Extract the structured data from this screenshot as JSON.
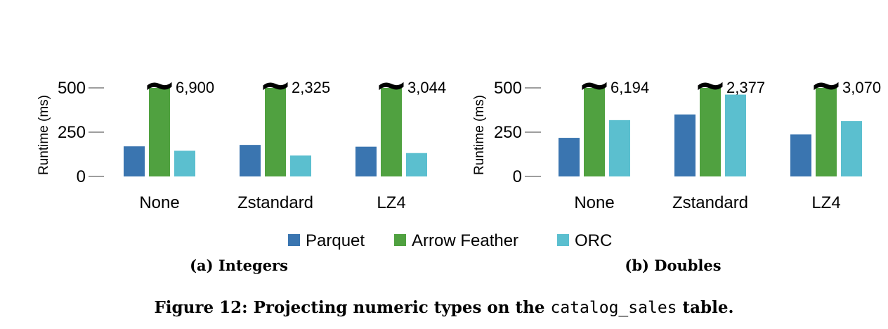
{
  "figure": {
    "caption_prefix": "Figure 12: Projecting numeric types on the",
    "caption_code": "catalog_sales",
    "caption_suffix": "table."
  },
  "legend": {
    "position": "bottom-center",
    "items": [
      {
        "label": "Parquet",
        "color": "#3a75b0"
      },
      {
        "label": "Arrow Feather",
        "color": "#50a140"
      },
      {
        "label": "ORC",
        "color": "#5bbfcf"
      }
    ]
  },
  "chart_data": [
    {
      "type": "bar",
      "subtitle": "(a) Integers",
      "ylabel": "Runtime (ms)",
      "ylim": [
        0,
        500
      ],
      "yticks": [
        0,
        250,
        500
      ],
      "ytick_labels": [
        "0",
        "250",
        "500"
      ],
      "categories": [
        "None",
        "Zstandard",
        "LZ4"
      ],
      "series": [
        {
          "name": "Parquet",
          "values": [
            170,
            178,
            168
          ]
        },
        {
          "name": "Arrow Feather",
          "values": [
            6900,
            2325,
            3044
          ]
        },
        {
          "name": "ORC",
          "values": [
            145,
            118,
            132
          ]
        }
      ],
      "annotations": [
        "6,900",
        "2,325",
        "3,044"
      ],
      "break_symbol": "~"
    },
    {
      "type": "bar",
      "subtitle": "(b) Doubles",
      "ylabel": "Runtime (ms)",
      "ylim": [
        0,
        500
      ],
      "yticks": [
        0,
        250,
        500
      ],
      "ytick_labels": [
        "0",
        "250",
        "500"
      ],
      "categories": [
        "None",
        "Zstandard",
        "LZ4"
      ],
      "series": [
        {
          "name": "Parquet",
          "values": [
            218,
            350,
            237
          ]
        },
        {
          "name": "Arrow Feather",
          "values": [
            6194,
            2377,
            3070
          ]
        },
        {
          "name": "ORC",
          "values": [
            318,
            462,
            313
          ]
        }
      ],
      "annotations": [
        "6,194",
        "2,377",
        "3,070"
      ],
      "break_symbol": "~"
    }
  ]
}
